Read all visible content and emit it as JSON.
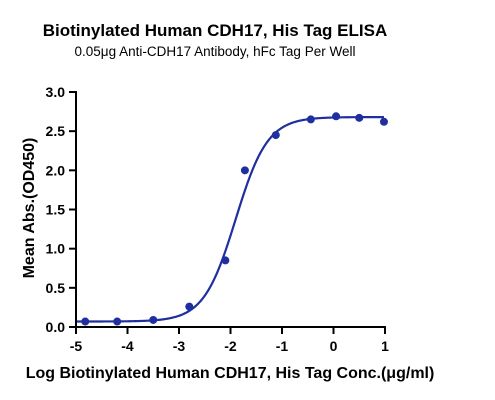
{
  "chart_data": {
    "type": "scatter",
    "title": "Biotinylated Human CDH17, His Tag ELISA",
    "subtitle": "0.05μg Anti-CDH17 Antibody, hFc Tag Per Well",
    "xlabel": "Log Biotinylated Human CDH17, His Tag Conc.(μg/ml)",
    "ylabel": "Mean Abs.(OD450)",
    "xlim": [
      -5,
      1
    ],
    "ylim": [
      0,
      3.0
    ],
    "xticks": [
      "-5",
      "-4",
      "-3",
      "-2",
      "-1",
      "0",
      "1"
    ],
    "yticks": [
      "0.0",
      "0.5",
      "1.0",
      "1.5",
      "2.0",
      "2.5",
      "3.0"
    ],
    "grid": false,
    "series": [
      {
        "points": [
          {
            "x": -4.82,
            "y": 0.07
          },
          {
            "x": -4.2,
            "y": 0.07
          },
          {
            "x": -3.5,
            "y": 0.09
          },
          {
            "x": -2.8,
            "y": 0.26
          },
          {
            "x": -2.1,
            "y": 0.85
          },
          {
            "x": -1.72,
            "y": 2.0
          },
          {
            "x": -1.12,
            "y": 2.45
          },
          {
            "x": -0.44,
            "y": 2.65
          },
          {
            "x": 0.05,
            "y": 2.69
          },
          {
            "x": 0.5,
            "y": 2.67
          },
          {
            "x": 0.98,
            "y": 2.62
          }
        ],
        "fit": {
          "model": "4PL",
          "bottom": 0.07,
          "top": 2.68,
          "logEC50": -1.9,
          "hill": 1.4
        }
      }
    ],
    "color": "#1f2f9f"
  }
}
